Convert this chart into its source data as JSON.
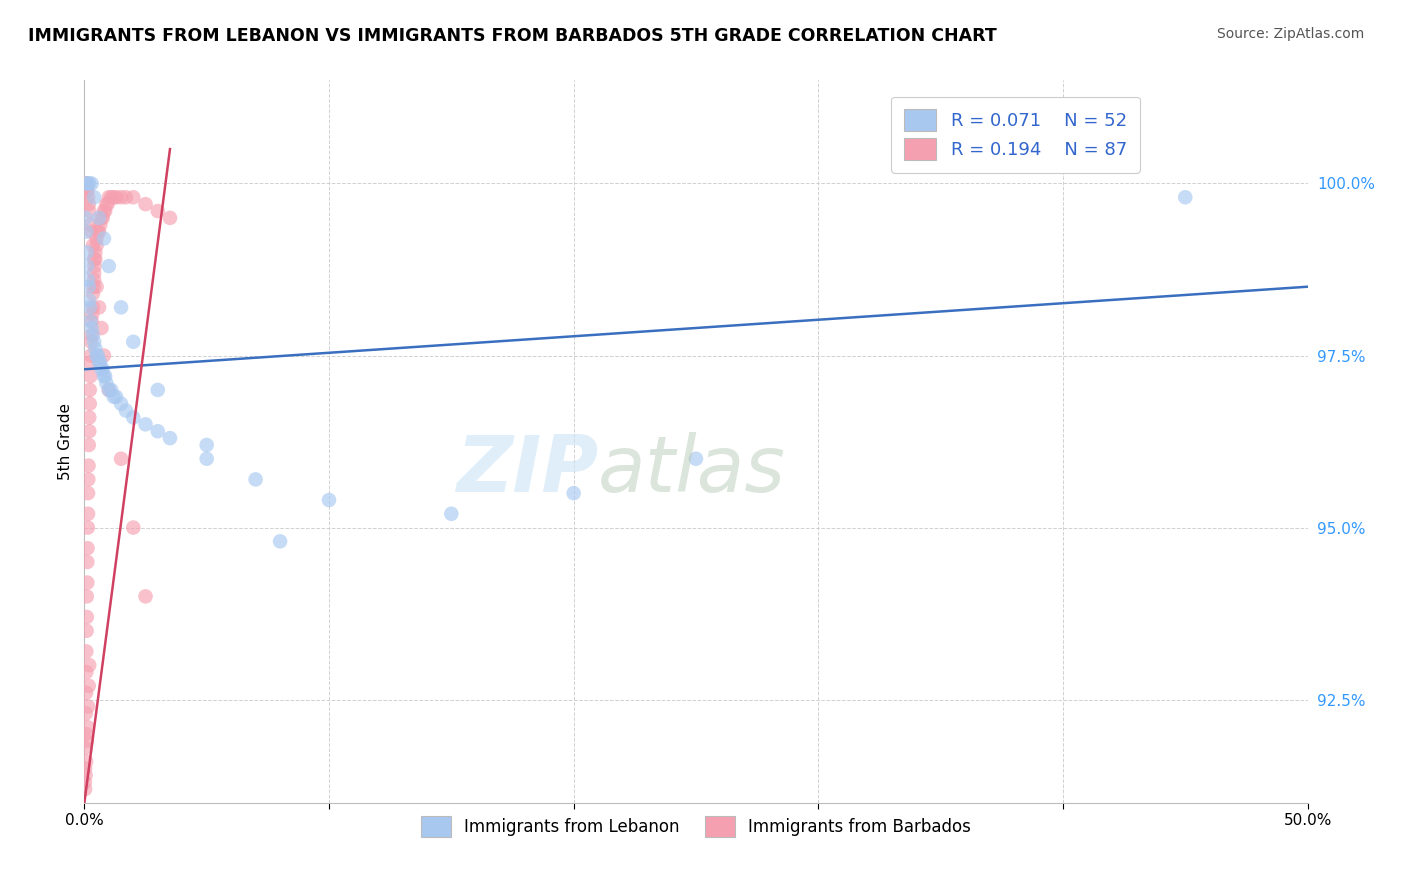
{
  "title": "IMMIGRANTS FROM LEBANON VS IMMIGRANTS FROM BARBADOS 5TH GRADE CORRELATION CHART",
  "source": "Source: ZipAtlas.com",
  "ylabel": "5th Grade",
  "y_ticks": [
    92.5,
    95.0,
    97.5,
    100.0
  ],
  "xlim": [
    0.0,
    50.0
  ],
  "ylim": [
    91.0,
    101.5
  ],
  "legend_r_lebanon": "R = 0.071",
  "legend_n_lebanon": "N = 52",
  "legend_r_barbados": "R = 0.194",
  "legend_n_barbados": "N = 87",
  "color_lebanon": "#a8c8f0",
  "color_barbados": "#f5a0b0",
  "line_color_lebanon": "#3a6fc0",
  "line_color_barbados": "#d04060",
  "lebanon_x": [
    0.05,
    0.08,
    0.1,
    0.12,
    0.15,
    0.18,
    0.2,
    0.22,
    0.25,
    0.3,
    0.35,
    0.4,
    0.45,
    0.5,
    0.55,
    0.6,
    0.65,
    0.7,
    0.75,
    0.8,
    0.85,
    0.9,
    1.0,
    1.1,
    1.2,
    1.3,
    1.5,
    1.7,
    2.0,
    2.5,
    3.0,
    3.5,
    5.0,
    7.0,
    10.0,
    15.0,
    20.0,
    25.0,
    45.0,
    0.1,
    0.15,
    0.2,
    0.3,
    0.4,
    0.6,
    0.8,
    1.0,
    1.5,
    2.0,
    3.0,
    5.0,
    8.0
  ],
  "lebanon_y": [
    99.5,
    99.3,
    99.0,
    98.8,
    98.6,
    98.5,
    98.3,
    98.2,
    98.0,
    97.9,
    97.8,
    97.7,
    97.6,
    97.5,
    97.5,
    97.4,
    97.4,
    97.3,
    97.3,
    97.2,
    97.2,
    97.1,
    97.0,
    97.0,
    96.9,
    96.9,
    96.8,
    96.7,
    96.6,
    96.5,
    96.4,
    96.3,
    96.0,
    95.7,
    95.4,
    95.2,
    95.5,
    96.0,
    99.8,
    100.0,
    100.0,
    100.0,
    100.0,
    99.8,
    99.5,
    99.2,
    98.8,
    98.2,
    97.7,
    97.0,
    96.2,
    94.8
  ],
  "barbados_x": [
    0.02,
    0.03,
    0.04,
    0.05,
    0.06,
    0.07,
    0.08,
    0.08,
    0.09,
    0.1,
    0.1,
    0.12,
    0.12,
    0.13,
    0.14,
    0.15,
    0.15,
    0.16,
    0.17,
    0.18,
    0.2,
    0.2,
    0.22,
    0.22,
    0.25,
    0.25,
    0.27,
    0.28,
    0.3,
    0.3,
    0.32,
    0.35,
    0.35,
    0.38,
    0.4,
    0.4,
    0.42,
    0.45,
    0.45,
    0.5,
    0.5,
    0.55,
    0.6,
    0.65,
    0.7,
    0.75,
    0.8,
    0.85,
    0.9,
    0.95,
    1.0,
    1.1,
    1.2,
    1.3,
    1.5,
    1.7,
    2.0,
    2.5,
    3.0,
    3.5,
    0.05,
    0.08,
    0.1,
    0.12,
    0.15,
    0.18,
    0.2,
    0.25,
    0.3,
    0.35,
    0.4,
    0.5,
    0.6,
    0.7,
    0.8,
    1.0,
    1.5,
    2.0,
    2.5,
    0.03,
    0.05,
    0.07,
    0.1,
    0.12,
    0.15,
    0.18,
    0.2
  ],
  "barbados_y": [
    91.3,
    91.5,
    91.8,
    92.0,
    92.3,
    92.6,
    92.9,
    93.2,
    93.5,
    93.7,
    94.0,
    94.2,
    94.5,
    94.7,
    95.0,
    95.2,
    95.5,
    95.7,
    95.9,
    96.2,
    96.4,
    96.6,
    96.8,
    97.0,
    97.2,
    97.4,
    97.5,
    97.7,
    97.8,
    98.0,
    98.1,
    98.2,
    98.4,
    98.5,
    98.6,
    98.7,
    98.8,
    98.9,
    99.0,
    99.1,
    99.2,
    99.3,
    99.3,
    99.4,
    99.5,
    99.5,
    99.6,
    99.6,
    99.7,
    99.7,
    99.8,
    99.8,
    99.8,
    99.8,
    99.8,
    99.8,
    99.8,
    99.7,
    99.6,
    99.5,
    100.0,
    100.0,
    99.9,
    99.9,
    99.8,
    99.7,
    99.6,
    99.4,
    99.3,
    99.1,
    98.9,
    98.5,
    98.2,
    97.9,
    97.5,
    97.0,
    96.0,
    95.0,
    94.0,
    91.2,
    91.4,
    91.6,
    91.9,
    92.1,
    92.4,
    92.7,
    93.0
  ]
}
